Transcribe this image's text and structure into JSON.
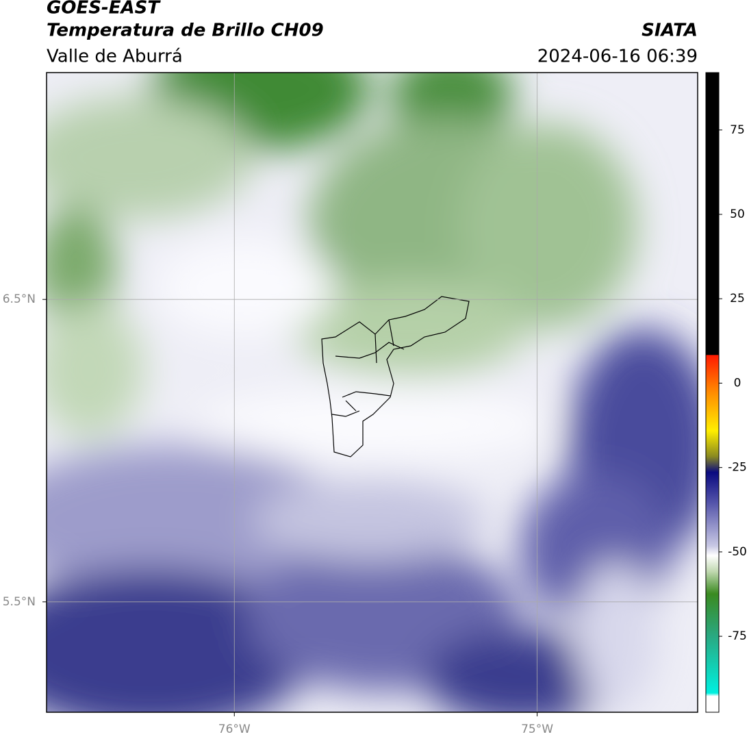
{
  "header": {
    "title": "GOES-EAST",
    "subtitle": "Temperatura de Brillo CH09",
    "region": "Valle de Aburrá",
    "source": "SIATA",
    "datetime": "2024-06-16 06:39"
  },
  "map": {
    "xlim": [
      -76.62,
      -74.47
    ],
    "ylim": [
      5.135,
      7.25
    ],
    "xticks": [
      {
        "value": -76,
        "label": "76°W"
      },
      {
        "value": -75,
        "label": "75°W"
      }
    ],
    "yticks": [
      {
        "value": 6.5,
        "label": "6.5°N"
      },
      {
        "value": 5.5,
        "label": "5.5°N"
      }
    ],
    "grid": true
  },
  "colorbar": {
    "lim": [
      -97.5,
      92
    ],
    "ticks": [
      75,
      50,
      25,
      0,
      -25,
      -50,
      -75
    ]
  }
}
